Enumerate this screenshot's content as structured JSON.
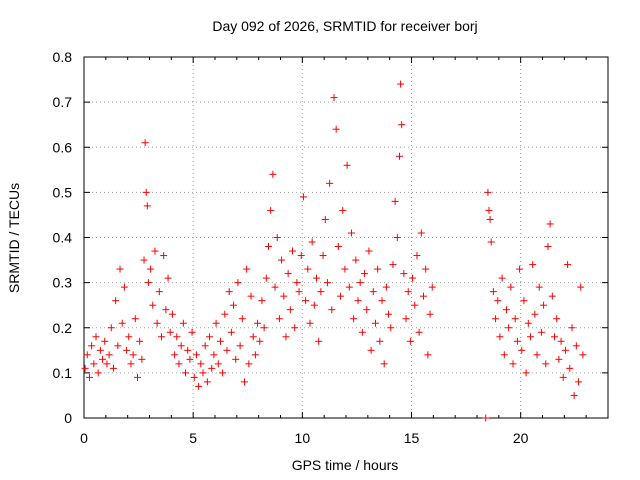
{
  "chart_data": {
    "type": "scatter",
    "title": "Day 092 of 2026, SRMTID for receiver borj",
    "xlabel": "GPS time / hours",
    "ylabel": "SRMTID / TECUs",
    "xlim": [
      0,
      24
    ],
    "ylim": [
      0,
      0.8
    ],
    "xticks": [
      0,
      5,
      10,
      15,
      20
    ],
    "yticks": [
      0,
      0.1,
      0.2,
      0.3,
      0.4,
      0.5,
      0.6,
      0.7,
      0.8
    ],
    "xtick_labels": [
      "0",
      "5",
      "10",
      "15",
      "20"
    ],
    "ytick_labels": [
      "0",
      "0.1",
      "0.2",
      "0.3",
      "0.4",
      "0.5",
      "0.6",
      "0.7",
      "0.8"
    ],
    "grid": true,
    "marker": "+",
    "color": "#ff0000",
    "series": [
      {
        "name": "SRMTID",
        "points": [
          [
            0.05,
            0.11
          ],
          [
            0.15,
            0.14
          ],
          [
            0.25,
            0.09
          ],
          [
            0.35,
            0.16
          ],
          [
            0.45,
            0.12
          ],
          [
            0.55,
            0.18
          ],
          [
            0.65,
            0.1
          ],
          [
            0.75,
            0.15
          ],
          [
            0.85,
            0.13
          ],
          [
            0.95,
            0.17
          ],
          [
            1.05,
            0.12
          ],
          [
            1.15,
            0.14
          ],
          [
            1.25,
            0.2
          ],
          [
            1.35,
            0.11
          ],
          [
            1.45,
            0.26
          ],
          [
            1.55,
            0.16
          ],
          [
            1.65,
            0.33
          ],
          [
            1.75,
            0.21
          ],
          [
            1.85,
            0.29
          ],
          [
            1.95,
            0.15
          ],
          [
            2.05,
            0.18
          ],
          [
            2.15,
            0.12
          ],
          [
            2.25,
            0.14
          ],
          [
            2.35,
            0.22
          ],
          [
            2.45,
            0.09
          ],
          [
            2.55,
            0.17
          ],
          [
            2.65,
            0.13
          ],
          [
            2.75,
            0.35
          ],
          [
            2.8,
            0.61
          ],
          [
            2.85,
            0.5
          ],
          [
            2.9,
            0.47
          ],
          [
            2.95,
            0.3
          ],
          [
            3.05,
            0.33
          ],
          [
            3.15,
            0.25
          ],
          [
            3.25,
            0.37
          ],
          [
            3.35,
            0.21
          ],
          [
            3.45,
            0.28
          ],
          [
            3.55,
            0.18
          ],
          [
            3.65,
            0.36
          ],
          [
            3.75,
            0.24
          ],
          [
            3.85,
            0.31
          ],
          [
            3.95,
            0.19
          ],
          [
            4.05,
            0.23
          ],
          [
            4.15,
            0.14
          ],
          [
            4.25,
            0.18
          ],
          [
            4.35,
            0.12
          ],
          [
            4.45,
            0.16
          ],
          [
            4.55,
            0.21
          ],
          [
            4.65,
            0.1
          ],
          [
            4.75,
            0.15
          ],
          [
            4.85,
            0.13
          ],
          [
            4.95,
            0.19
          ],
          [
            5.05,
            0.09
          ],
          [
            5.15,
            0.14
          ],
          [
            5.25,
            0.07
          ],
          [
            5.35,
            0.12
          ],
          [
            5.45,
            0.1
          ],
          [
            5.55,
            0.16
          ],
          [
            5.65,
            0.08
          ],
          [
            5.75,
            0.18
          ],
          [
            5.85,
            0.11
          ],
          [
            5.95,
            0.14
          ],
          [
            6.05,
            0.21
          ],
          [
            6.15,
            0.12
          ],
          [
            6.25,
            0.17
          ],
          [
            6.35,
            0.1
          ],
          [
            6.45,
            0.23
          ],
          [
            6.55,
            0.15
          ],
          [
            6.65,
            0.28
          ],
          [
            6.75,
            0.19
          ],
          [
            6.85,
            0.25
          ],
          [
            6.95,
            0.13
          ],
          [
            7.05,
            0.3
          ],
          [
            7.15,
            0.16
          ],
          [
            7.25,
            0.22
          ],
          [
            7.35,
            0.08
          ],
          [
            7.45,
            0.33
          ],
          [
            7.55,
            0.12
          ],
          [
            7.65,
            0.27
          ],
          [
            7.75,
            0.18
          ],
          [
            7.85,
            0.14
          ],
          [
            7.95,
            0.21
          ],
          [
            8.05,
            0.17
          ],
          [
            8.15,
            0.26
          ],
          [
            8.25,
            0.2
          ],
          [
            8.35,
            0.31
          ],
          [
            8.45,
            0.38
          ],
          [
            8.55,
            0.46
          ],
          [
            8.65,
            0.54
          ],
          [
            8.75,
            0.29
          ],
          [
            8.85,
            0.4
          ],
          [
            8.95,
            0.22
          ],
          [
            9.05,
            0.35
          ],
          [
            9.15,
            0.27
          ],
          [
            9.25,
            0.18
          ],
          [
            9.35,
            0.32
          ],
          [
            9.45,
            0.24
          ],
          [
            9.55,
            0.37
          ],
          [
            9.65,
            0.2
          ],
          [
            9.75,
            0.3
          ],
          [
            9.85,
            0.28
          ],
          [
            9.95,
            0.36
          ],
          [
            10.05,
            0.49
          ],
          [
            10.15,
            0.26
          ],
          [
            10.25,
            0.33
          ],
          [
            10.35,
            0.21
          ],
          [
            10.45,
            0.39
          ],
          [
            10.55,
            0.25
          ],
          [
            10.65,
            0.31
          ],
          [
            10.75,
            0.17
          ],
          [
            10.85,
            0.28
          ],
          [
            10.95,
            0.36
          ],
          [
            11.05,
            0.44
          ],
          [
            11.15,
            0.3
          ],
          [
            11.25,
            0.52
          ],
          [
            11.35,
            0.24
          ],
          [
            11.45,
            0.71
          ],
          [
            11.55,
            0.64
          ],
          [
            11.65,
            0.38
          ],
          [
            11.75,
            0.27
          ],
          [
            11.85,
            0.46
          ],
          [
            11.95,
            0.33
          ],
          [
            12.05,
            0.56
          ],
          [
            12.15,
            0.29
          ],
          [
            12.25,
            0.41
          ],
          [
            12.35,
            0.22
          ],
          [
            12.45,
            0.35
          ],
          [
            12.55,
            0.26
          ],
          [
            12.65,
            0.3
          ],
          [
            12.75,
            0.19
          ],
          [
            12.85,
            0.32
          ],
          [
            12.95,
            0.24
          ],
          [
            13.05,
            0.37
          ],
          [
            13.15,
            0.15
          ],
          [
            13.25,
            0.28
          ],
          [
            13.35,
            0.21
          ],
          [
            13.45,
            0.33
          ],
          [
            13.55,
            0.17
          ],
          [
            13.65,
            0.26
          ],
          [
            13.75,
            0.12
          ],
          [
            13.85,
            0.29
          ],
          [
            13.95,
            0.23
          ],
          [
            14.05,
            0.2
          ],
          [
            14.15,
            0.34
          ],
          [
            14.25,
            0.48
          ],
          [
            14.35,
            0.4
          ],
          [
            14.45,
            0.58
          ],
          [
            14.5,
            0.74
          ],
          [
            14.55,
            0.65
          ],
          [
            14.65,
            0.32
          ],
          [
            14.75,
            0.22
          ],
          [
            14.85,
            0.28
          ],
          [
            14.95,
            0.17
          ],
          [
            15.05,
            0.31
          ],
          [
            15.15,
            0.25
          ],
          [
            15.25,
            0.36
          ],
          [
            15.35,
            0.19
          ],
          [
            15.45,
            0.41
          ],
          [
            15.55,
            0.27
          ],
          [
            15.65,
            0.33
          ],
          [
            15.75,
            0.14
          ],
          [
            15.85,
            0.23
          ],
          [
            15.95,
            0.29
          ],
          [
            18.4,
            0.0
          ],
          [
            18.5,
            0.5
          ],
          [
            18.55,
            0.46
          ],
          [
            18.6,
            0.44
          ],
          [
            18.65,
            0.39
          ],
          [
            18.75,
            0.28
          ],
          [
            18.85,
            0.22
          ],
          [
            18.95,
            0.26
          ],
          [
            19.05,
            0.18
          ],
          [
            19.15,
            0.31
          ],
          [
            19.25,
            0.14
          ],
          [
            19.35,
            0.24
          ],
          [
            19.45,
            0.2
          ],
          [
            19.55,
            0.29
          ],
          [
            19.65,
            0.12
          ],
          [
            19.75,
            0.22
          ],
          [
            19.85,
            0.17
          ],
          [
            19.95,
            0.33
          ],
          [
            20.05,
            0.15
          ],
          [
            20.15,
            0.26
          ],
          [
            20.25,
            0.1
          ],
          [
            20.35,
            0.21
          ],
          [
            20.45,
            0.18
          ],
          [
            20.55,
            0.34
          ],
          [
            20.65,
            0.23
          ],
          [
            20.75,
            0.14
          ],
          [
            20.85,
            0.29
          ],
          [
            20.95,
            0.19
          ],
          [
            21.05,
            0.25
          ],
          [
            21.15,
            0.12
          ],
          [
            21.25,
            0.38
          ],
          [
            21.35,
            0.43
          ],
          [
            21.45,
            0.27
          ],
          [
            21.55,
            0.18
          ],
          [
            21.65,
            0.22
          ],
          [
            21.75,
            0.13
          ],
          [
            21.85,
            0.17
          ],
          [
            21.95,
            0.09
          ],
          [
            22.05,
            0.15
          ],
          [
            22.15,
            0.34
          ],
          [
            22.25,
            0.11
          ],
          [
            22.35,
            0.2
          ],
          [
            22.45,
            0.05
          ],
          [
            22.55,
            0.16
          ],
          [
            22.65,
            0.08
          ],
          [
            22.75,
            0.29
          ],
          [
            22.85,
            0.14
          ]
        ]
      }
    ]
  }
}
